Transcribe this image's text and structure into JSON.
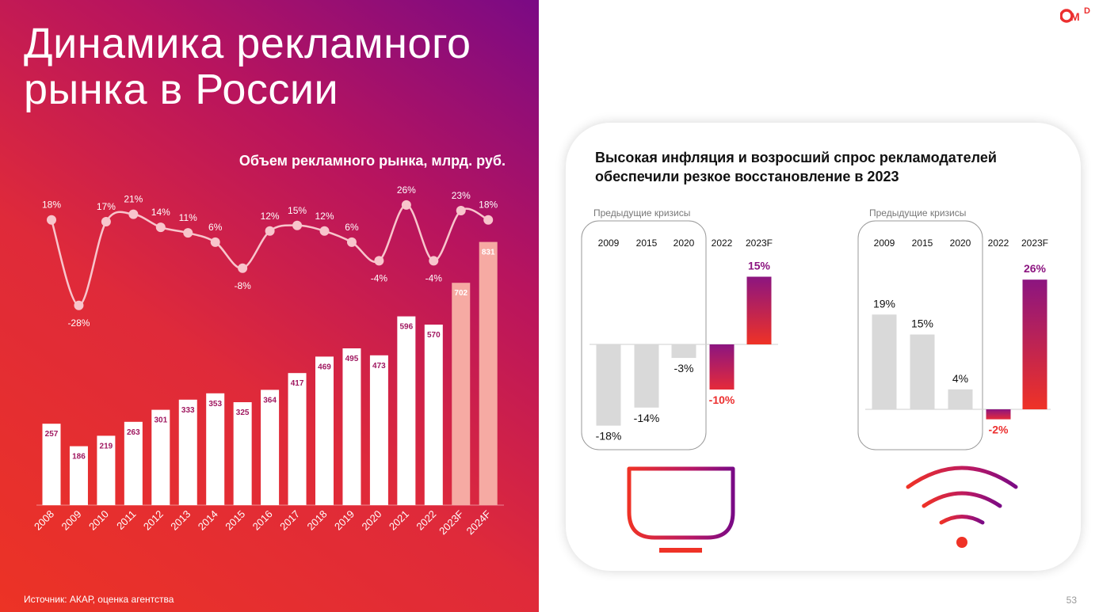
{
  "page": {
    "title_line1": "Динамика рекламного",
    "title_line2": "рынка в России",
    "subtitle": "Объем рекламного  рынка, млрд. руб.",
    "source": "Источник: АКАР, оценка агентства",
    "page_number": "53",
    "logo": "OMD"
  },
  "card": {
    "title": "Высокая инфляция и возросший спрос рекламодателей обеспечили резкое восстановление  в 2023",
    "tv_icon": "tv-icon",
    "wifi_icon": "wifi-icon"
  },
  "colors": {
    "bar_actual": "#ffffff",
    "bar_forecast": "#f6aaa3",
    "growth_line": "#f8c5cc",
    "crisis_bar": "#d9d9d9",
    "negative_label": "#ec2f2f",
    "positive_label": "#8c1580",
    "bar_value_text": "#a01860"
  },
  "chart_data": [
    {
      "type": "bar",
      "title": "Объем рекламного  рынка, млрд. руб.",
      "categories": [
        "2008",
        "2009",
        "2010",
        "2011",
        "2012",
        "2013",
        "2014",
        "2015",
        "2016",
        "2017",
        "2018",
        "2019",
        "2020",
        "2021",
        "2022",
        "2023F",
        "2024F"
      ],
      "values": [
        257,
        186,
        219,
        263,
        301,
        333,
        353,
        325,
        364,
        417,
        469,
        495,
        473,
        596,
        570,
        702,
        831
      ],
      "forecast": [
        false,
        false,
        false,
        false,
        false,
        false,
        false,
        false,
        false,
        false,
        false,
        false,
        false,
        false,
        false,
        true,
        true
      ],
      "line_series": {
        "type": "line",
        "values": [
          18,
          -28,
          17,
          21,
          14,
          11,
          6,
          -8,
          12,
          15,
          12,
          6,
          -4,
          26,
          -4,
          23,
          18
        ],
        "labels": [
          "18%",
          "-28%",
          "17%",
          "21%",
          "14%",
          "11%",
          "6%",
          "-8%",
          "12%",
          "15%",
          "12%",
          "6%",
          "-4%",
          "26%",
          "-4%",
          "23%",
          "18%"
        ]
      }
    },
    {
      "type": "bar",
      "group_label": "Предыдущие кризисы",
      "categories": [
        "2009",
        "2015",
        "2020",
        "2022",
        "2023F"
      ],
      "values": [
        -18,
        -14,
        -3,
        -10,
        15
      ],
      "labels": [
        "-18%",
        "-14%",
        "-3%",
        "-10%",
        "15%"
      ]
    },
    {
      "type": "bar",
      "group_label": "Предыдущие кризисы",
      "categories": [
        "2009",
        "2015",
        "2020",
        "2022",
        "2023F"
      ],
      "values": [
        19,
        15,
        4,
        -2,
        26
      ],
      "labels": [
        "19%",
        "15%",
        "4%",
        "-2%",
        "26%"
      ]
    }
  ]
}
